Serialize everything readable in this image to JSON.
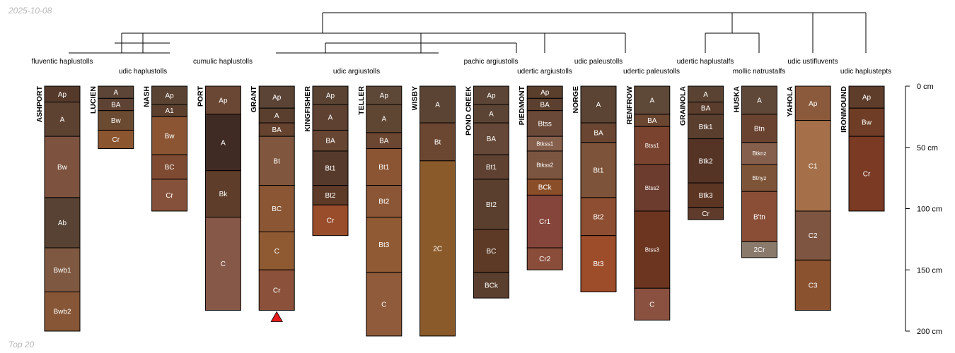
{
  "date_label": "2025-10-08",
  "footer_label": "Top 20",
  "depth_axis": {
    "unit": "cm",
    "ticks": [
      0,
      50,
      100,
      150,
      200
    ],
    "max": 200
  },
  "tree_leaves": [
    {
      "label": "fluventic haplustolls"
    },
    {
      "label": "udic haplustolls"
    },
    {
      "label": "cumulic haplustolls"
    },
    {
      "label": "udic argiustolls"
    },
    {
      "label": "pachic argiustolls"
    },
    {
      "label": "udertic argiustolls"
    },
    {
      "label": "udic paleustolls"
    },
    {
      "label": "udertic paleustolls"
    },
    {
      "label": "udertic haplustalfs"
    },
    {
      "label": "mollic natrustalfs"
    },
    {
      "label": "udic ustifluvents"
    },
    {
      "label": "udic haplustepts"
    }
  ],
  "marker": {
    "profile": "GRANT",
    "color": "#e41a1c"
  },
  "profiles": [
    {
      "name": "ASHPORT",
      "horizons": [
        {
          "name": "Ap",
          "top": 0,
          "bottom": 13,
          "color": "#553a2b"
        },
        {
          "name": "A",
          "top": 13,
          "bottom": 41,
          "color": "#5e4231"
        },
        {
          "name": "Bw",
          "top": 41,
          "bottom": 91,
          "color": "#7d5340"
        },
        {
          "name": "Ab",
          "top": 91,
          "bottom": 132,
          "color": "#574233"
        },
        {
          "name": "Bwb1",
          "top": 132,
          "bottom": 168,
          "color": "#7e5840"
        },
        {
          "name": "Bwb2",
          "top": 168,
          "bottom": 200,
          "color": "#875636"
        }
      ]
    },
    {
      "name": "LUCIEN",
      "horizons": [
        {
          "name": "A",
          "top": 0,
          "bottom": 10,
          "color": "#5c4536"
        },
        {
          "name": "BA",
          "top": 10,
          "bottom": 20,
          "color": "#5e4233"
        },
        {
          "name": "Bw",
          "top": 20,
          "bottom": 36,
          "color": "#6a4a30"
        },
        {
          "name": "Cr",
          "top": 36,
          "bottom": 51,
          "color": "#8b5530"
        }
      ]
    },
    {
      "name": "NASH",
      "horizons": [
        {
          "name": "Ap",
          "top": 0,
          "bottom": 15,
          "color": "#5a4333"
        },
        {
          "name": "A1",
          "top": 15,
          "bottom": 25,
          "color": "#5c3f2d"
        },
        {
          "name": "Bw",
          "top": 25,
          "bottom": 56,
          "color": "#8b5534"
        },
        {
          "name": "BC",
          "top": 56,
          "bottom": 76,
          "color": "#7e4a32"
        },
        {
          "name": "Cr",
          "top": 76,
          "bottom": 102,
          "color": "#86513a"
        }
      ]
    },
    {
      "name": "PORT",
      "horizons": [
        {
          "name": "Ap",
          "top": 0,
          "bottom": 23,
          "color": "#6a4634"
        },
        {
          "name": "A",
          "top": 23,
          "bottom": 69,
          "color": "#3f2b24"
        },
        {
          "name": "Bk",
          "top": 69,
          "bottom": 107,
          "color": "#5e3e2b"
        },
        {
          "name": "C",
          "top": 107,
          "bottom": 183,
          "color": "#855847"
        }
      ]
    },
    {
      "name": "GRANT",
      "horizons": [
        {
          "name": "Ap",
          "top": 0,
          "bottom": 18,
          "color": "#5b4436"
        },
        {
          "name": "A",
          "top": 18,
          "bottom": 30,
          "color": "#5a3f2f"
        },
        {
          "name": "BA",
          "top": 30,
          "bottom": 41,
          "color": "#66432f"
        },
        {
          "name": "Bt",
          "top": 41,
          "bottom": 81,
          "color": "#80563e"
        },
        {
          "name": "BC",
          "top": 81,
          "bottom": 119,
          "color": "#8b5633"
        },
        {
          "name": "C",
          "top": 119,
          "bottom": 150,
          "color": "#8f5a32"
        },
        {
          "name": "Cr",
          "top": 150,
          "bottom": 183,
          "color": "#8b513a"
        }
      ]
    },
    {
      "name": "KINGFISHER",
      "horizons": [
        {
          "name": "Ap",
          "top": 0,
          "bottom": 15,
          "color": "#5a4333"
        },
        {
          "name": "A",
          "top": 15,
          "bottom": 36,
          "color": "#5e4131"
        },
        {
          "name": "BA",
          "top": 36,
          "bottom": 53,
          "color": "#664532"
        },
        {
          "name": "Bt1",
          "top": 53,
          "bottom": 81,
          "color": "#563a2b"
        },
        {
          "name": "Bt2",
          "top": 81,
          "bottom": 97,
          "color": "#5e3a28"
        },
        {
          "name": "Cr",
          "top": 97,
          "bottom": 122,
          "color": "#9a4d2b"
        }
      ]
    },
    {
      "name": "TELLER",
      "horizons": [
        {
          "name": "Ap",
          "top": 0,
          "bottom": 15,
          "color": "#5d4736"
        },
        {
          "name": "A",
          "top": 15,
          "bottom": 38,
          "color": "#5e4632"
        },
        {
          "name": "BA",
          "top": 38,
          "bottom": 51,
          "color": "#6b4630"
        },
        {
          "name": "Bt1",
          "top": 51,
          "bottom": 81,
          "color": "#8b5534"
        },
        {
          "name": "Bt2",
          "top": 81,
          "bottom": 107,
          "color": "#8b5636"
        },
        {
          "name": "Bt3",
          "top": 107,
          "bottom": 152,
          "color": "#8f5a34"
        },
        {
          "name": "C",
          "top": 152,
          "bottom": 204,
          "color": "#8f5b3a"
        }
      ]
    },
    {
      "name": "WISBY",
      "horizons": [
        {
          "name": "A",
          "top": 0,
          "bottom": 30,
          "color": "#5b4433"
        },
        {
          "name": "Bt",
          "top": 30,
          "bottom": 61,
          "color": "#6b4630"
        },
        {
          "name": "2C",
          "top": 61,
          "bottom": 204,
          "color": "#8b5a2b"
        }
      ]
    },
    {
      "name": "POND CREEK",
      "horizons": [
        {
          "name": "Ap",
          "top": 0,
          "bottom": 15,
          "color": "#5c4536"
        },
        {
          "name": "A",
          "top": 15,
          "bottom": 30,
          "color": "#5c4434"
        },
        {
          "name": "BA",
          "top": 30,
          "bottom": 56,
          "color": "#654837"
        },
        {
          "name": "Bt1",
          "top": 56,
          "bottom": 76,
          "color": "#5e4131"
        },
        {
          "name": "Bt2",
          "top": 76,
          "bottom": 117,
          "color": "#5a3f2e"
        },
        {
          "name": "BC",
          "top": 117,
          "bottom": 152,
          "color": "#5c3a26"
        },
        {
          "name": "BCk",
          "top": 152,
          "bottom": 173,
          "color": "#5b3f2e"
        }
      ]
    },
    {
      "name": "PIEDMONT",
      "horizons": [
        {
          "name": "Ap",
          "top": 0,
          "bottom": 10,
          "color": "#5a3f2d"
        },
        {
          "name": "BA",
          "top": 10,
          "bottom": 20,
          "color": "#5b3f2f"
        },
        {
          "name": "Btss",
          "top": 20,
          "bottom": 41,
          "color": "#6a4938"
        },
        {
          "name": "Btkss1",
          "top": 41,
          "bottom": 53,
          "color": "#86604c"
        },
        {
          "name": "Btkss2",
          "top": 53,
          "bottom": 76,
          "color": "#7c5540"
        },
        {
          "name": "BCk",
          "top": 76,
          "bottom": 89,
          "color": "#8a4e28"
        },
        {
          "name": "Cr1",
          "top": 89,
          "bottom": 132,
          "color": "#86453a"
        },
        {
          "name": "Cr2",
          "top": 132,
          "bottom": 150,
          "color": "#8a4d3a"
        }
      ]
    },
    {
      "name": "NORGE",
      "horizons": [
        {
          "name": "A",
          "top": 0,
          "bottom": 30,
          "color": "#5b4433"
        },
        {
          "name": "BA",
          "top": 30,
          "bottom": 46,
          "color": "#6a4632"
        },
        {
          "name": "Bt1",
          "top": 46,
          "bottom": 91,
          "color": "#7d5339"
        },
        {
          "name": "Bt2",
          "top": 91,
          "bottom": 122,
          "color": "#8e4e32"
        },
        {
          "name": "Bt3",
          "top": 122,
          "bottom": 168,
          "color": "#9e4d2a"
        }
      ]
    },
    {
      "name": "RENFROW",
      "horizons": [
        {
          "name": "A",
          "top": 0,
          "bottom": 23,
          "color": "#5e4838"
        },
        {
          "name": "BA",
          "top": 23,
          "bottom": 33,
          "color": "#6b4631"
        },
        {
          "name": "Btss1",
          "top": 33,
          "bottom": 64,
          "color": "#7a4330"
        },
        {
          "name": "Btss2",
          "top": 64,
          "bottom": 102,
          "color": "#6c3c2f"
        },
        {
          "name": "Btss3",
          "top": 102,
          "bottom": 165,
          "color": "#6c3520"
        },
        {
          "name": "C",
          "top": 165,
          "bottom": 191,
          "color": "#8a5140"
        }
      ]
    },
    {
      "name": "GRAINOLA",
      "horizons": [
        {
          "name": "A",
          "top": 0,
          "bottom": 13,
          "color": "#5a4333"
        },
        {
          "name": "BA",
          "top": 13,
          "bottom": 23,
          "color": "#5a3d2c"
        },
        {
          "name": "Btk1",
          "top": 23,
          "bottom": 43,
          "color": "#5a3f2f"
        },
        {
          "name": "Btk2",
          "top": 43,
          "bottom": 79,
          "color": "#553426"
        },
        {
          "name": "Btk3",
          "top": 79,
          "bottom": 99,
          "color": "#5c3523"
        },
        {
          "name": "Cr",
          "top": 99,
          "bottom": 109,
          "color": "#5e3b2b"
        }
      ]
    },
    {
      "name": "HUSKA",
      "horizons": [
        {
          "name": "A",
          "top": 0,
          "bottom": 23,
          "color": "#5f4838"
        },
        {
          "name": "Btn",
          "top": 23,
          "bottom": 46,
          "color": "#6a4330"
        },
        {
          "name": "Btknz",
          "top": 46,
          "bottom": 64,
          "color": "#855f4b"
        },
        {
          "name": "Btnyz",
          "top": 64,
          "bottom": 86,
          "color": "#7e5438"
        },
        {
          "name": "B'tn",
          "top": 86,
          "bottom": 127,
          "color": "#8a4e37"
        },
        {
          "name": "2Cr",
          "top": 127,
          "bottom": 140,
          "color": "#8a7a6c"
        }
      ]
    },
    {
      "name": "YAHOLA",
      "horizons": [
        {
          "name": "Ap",
          "top": 0,
          "bottom": 28,
          "color": "#8b5a3c"
        },
        {
          "name": "C1",
          "top": 28,
          "bottom": 102,
          "color": "#a57049"
        },
        {
          "name": "C2",
          "top": 102,
          "bottom": 142,
          "color": "#7e5540"
        },
        {
          "name": "C3",
          "top": 142,
          "bottom": 183,
          "color": "#8b5230"
        }
      ]
    },
    {
      "name": "IRONMOUND",
      "horizons": [
        {
          "name": "Ap",
          "top": 0,
          "bottom": 18,
          "color": "#5e3d2b"
        },
        {
          "name": "Bw",
          "top": 18,
          "bottom": 41,
          "color": "#6f3d26"
        },
        {
          "name": "Cr",
          "top": 41,
          "bottom": 102,
          "color": "#7a3a23"
        }
      ]
    }
  ]
}
